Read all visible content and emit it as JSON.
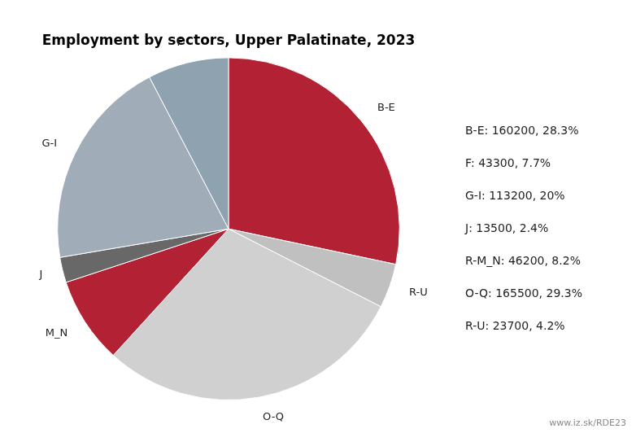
{
  "chart_data": {
    "type": "pie",
    "title": "Employment by sectors, Upper Palatinate, 2023",
    "categories": [
      "B-E",
      "R-U",
      "O-Q",
      "M_N",
      "J",
      "G-I",
      "F"
    ],
    "values": [
      160200,
      23700,
      165500,
      46200,
      13500,
      113200,
      43300
    ],
    "colors": [
      "#b22234",
      "#c0c0c0",
      "#d0d0d0",
      "#b22234",
      "#686868",
      "#a0adb8",
      "#8fa2b0"
    ],
    "annotations": [
      "B-E: 160200, 28.3%",
      "F: 43300, 7.7%",
      "G-I: 113200, 20%",
      "J: 13500, 2.4%",
      "R-M_N: 46200, 8.2%",
      "O-Q: 165500, 29.3%",
      "R-U: 23700, 4.2%",
      "www.iz.sk/RDE23"
    ]
  }
}
